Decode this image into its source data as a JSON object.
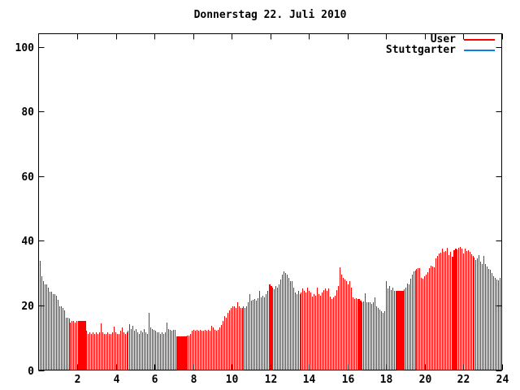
{
  "title": "Donnerstag 22. Juli 2010",
  "legend": {
    "items": [
      {
        "label": "User",
        "color": "#ff0000"
      },
      {
        "label": "Stuttgarter",
        "color": "#0d7de8"
      }
    ]
  },
  "colors": {
    "background": "#ffffff",
    "axis": "#000000",
    "text": "#000000",
    "bar": "#ff0000"
  },
  "chart_data": {
    "type": "bar",
    "title": "Donnerstag 22. Juli 2010",
    "xlabel": "",
    "ylabel": "",
    "xlim": [
      0,
      24
    ],
    "ylim": [
      0,
      104
    ],
    "x_ticks": [
      2,
      4,
      6,
      8,
      10,
      12,
      14,
      16,
      18,
      20,
      22,
      24
    ],
    "y_ticks": [
      0,
      20,
      40,
      60,
      80,
      100
    ],
    "grid": false,
    "legend_position": "top-right",
    "interval_minutes": 5,
    "series": [
      {
        "name": "User",
        "color": "#ff0000",
        "style": "impulses",
        "values": [
          33.8,
          29.0,
          27.5,
          26.5,
          26.4,
          25.4,
          24.3,
          24.3,
          23.5,
          23.5,
          23.1,
          21.8,
          19.7,
          19.7,
          19.3,
          18.4,
          16.3,
          16.3,
          15.9,
          14.7,
          15.1,
          15.1,
          14.7,
          15.1,
          15.1,
          15.1,
          15.1,
          15.1,
          15.1,
          12.1,
          11.3,
          11.6,
          11.1,
          11.6,
          11.3,
          11.6,
          11.1,
          11.6,
          14.4,
          11.6,
          11.1,
          11.3,
          11.6,
          11.1,
          11.3,
          11.6,
          13.4,
          11.6,
          11.3,
          11.1,
          12.1,
          13.1,
          11.6,
          11.1,
          11.6,
          12.1,
          14.1,
          12.6,
          13.6,
          12.1,
          12.6,
          11.6,
          11.1,
          12.1,
          11.6,
          12.6,
          11.6,
          11.3,
          17.8,
          13.1,
          12.6,
          12.4,
          12.1,
          11.6,
          11.6,
          11.1,
          11.6,
          11.1,
          11.6,
          14.8,
          12.6,
          12.4,
          12.1,
          12.4,
          12.4,
          10.4,
          10.4,
          10.4,
          10.4,
          10.4,
          10.4,
          10.4,
          10.6,
          10.6,
          11.1,
          12.1,
          12.4,
          12.1,
          12.4,
          12.1,
          12.4,
          12.1,
          12.1,
          12.4,
          12.1,
          12.4,
          12.1,
          13.6,
          13.1,
          12.4,
          12.1,
          12.4,
          13.1,
          13.9,
          15.1,
          16.8,
          16.1,
          17.7,
          18.5,
          19.1,
          19.6,
          19.8,
          19.1,
          21.1,
          19.6,
          19.1,
          19.3,
          19.6,
          19.3,
          19.6,
          21.1,
          23.5,
          21.6,
          21.8,
          22.1,
          21.6,
          22.3,
          24.4,
          22.6,
          23.1,
          22.6,
          23.5,
          24.6,
          26.6,
          26.1,
          25.6,
          25.1,
          26.1,
          25.6,
          26.6,
          28.1,
          29.6,
          30.6,
          30.1,
          29.6,
          28.6,
          27.6,
          27.4,
          25.6,
          24.1,
          23.6,
          24.6,
          23.6,
          24.1,
          25.2,
          24.6,
          24.1,
          25.6,
          24.6,
          24.1,
          22.7,
          23.6,
          23.1,
          25.6,
          23.6,
          23.1,
          24.1,
          24.8,
          25.2,
          24.6,
          25.2,
          22.7,
          21.9,
          22.6,
          23.1,
          24.8,
          26.1,
          31.7,
          29.6,
          28.6,
          28.1,
          27.6,
          26.6,
          27.5,
          25.6,
          22.4,
          22.1,
          22.3,
          21.9,
          22.1,
          21.4,
          21.1,
          21.3,
          23.7,
          21.1,
          20.9,
          21.1,
          20.6,
          21.1,
          22.4,
          19.6,
          19.1,
          18.8,
          18.2,
          17.8,
          18.1,
          27.5,
          25.2,
          26.1,
          24.8,
          25.6,
          24.4,
          24.6,
          24.6,
          24.6,
          24.6,
          24.6,
          25.1,
          25.6,
          26.8,
          26.4,
          28.2,
          29.6,
          30.6,
          30.9,
          31.2,
          31.6,
          31.6,
          28.6,
          28.2,
          29.1,
          29.6,
          30.4,
          31.6,
          32.4,
          32.1,
          31.8,
          34.6,
          35.4,
          36.1,
          36.2,
          37.5,
          36.6,
          36.8,
          37.9,
          35.6,
          36.6,
          35.1,
          37.1,
          37.5,
          37.2,
          37.8,
          38.1,
          37.5,
          36.1,
          37.5,
          36.8,
          37.1,
          36.6,
          35.8,
          35.4,
          34.9,
          34.1,
          34.6,
          35.5,
          33.6,
          32.7,
          35.4,
          32.7,
          32.1,
          31.4,
          31.1,
          30.1,
          28.9,
          28.6,
          28.1,
          27.7,
          28.4
        ],
        "wide_bar_index_ranges": [
          [
            24,
            28
          ],
          [
            85,
            91
          ],
          [
            143,
            144
          ],
          [
            199,
            200
          ],
          [
            222,
            226
          ],
          [
            257,
            259
          ]
        ]
      },
      {
        "name": "Stuttgarter",
        "color": "#0d7de8",
        "style": "lines",
        "values": []
      }
    ]
  }
}
